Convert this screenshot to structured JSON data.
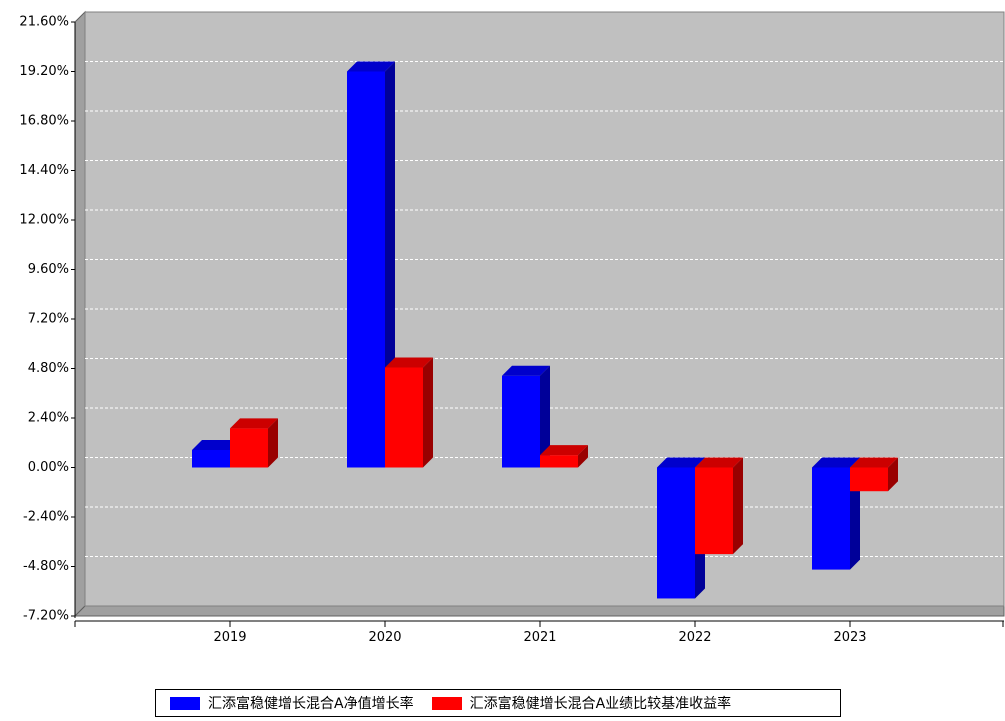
{
  "chart_data": {
    "type": "bar",
    "categories": [
      "2019",
      "2020",
      "2021",
      "2022",
      "2023"
    ],
    "series": [
      {
        "name": "汇添富稳健增长混合A净值增长率",
        "color": "#0000ff",
        "values": [
          0.85,
          19.2,
          4.45,
          -6.35,
          -4.95
        ]
      },
      {
        "name": "汇添富稳健增长混合A业绩比较基准收益率",
        "color": "#ff0000",
        "values": [
          1.9,
          4.85,
          0.6,
          -4.2,
          -1.15
        ]
      }
    ],
    "yticks": [
      "21.60%",
      "19.20%",
      "16.80%",
      "14.40%",
      "12.00%",
      "9.60%",
      "7.20%",
      "4.80%",
      "2.40%",
      "0.00%",
      "-2.40%",
      "-4.80%",
      "-7.20%"
    ],
    "ylim": [
      -7.2,
      21.6
    ],
    "grid": true,
    "background": "#c0c0c0",
    "legend_position": "bottom"
  }
}
